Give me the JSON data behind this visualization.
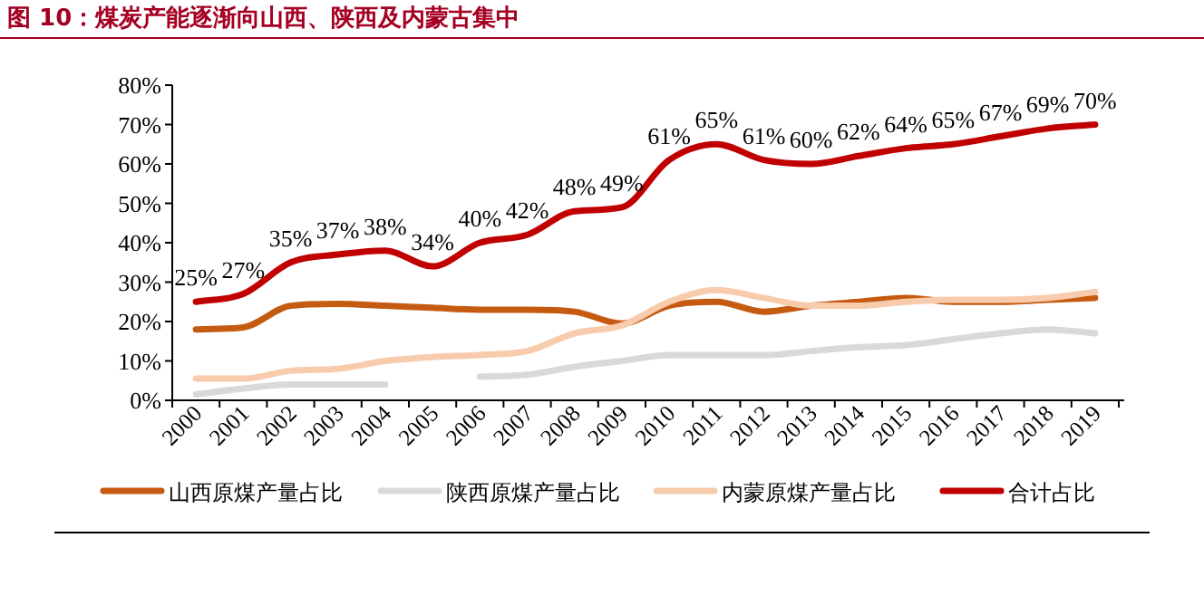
{
  "chart_data": {
    "type": "line",
    "title": "图 10：煤炭产能逐渐向山西、陕西及内蒙古集中",
    "categories": [
      "2000",
      "2001",
      "2002",
      "2003",
      "2004",
      "2005",
      "2006",
      "2007",
      "2008",
      "2009",
      "2010",
      "2011",
      "2012",
      "2013",
      "2014",
      "2015",
      "2016",
      "2017",
      "2018",
      "2019"
    ],
    "series": [
      {
        "name": "山西原煤产量占比",
        "color": "#c55a11",
        "values": [
          18,
          18.5,
          24,
          24.5,
          24,
          23.5,
          23,
          23,
          22.5,
          19.5,
          24,
          25,
          22.5,
          24,
          25,
          26,
          25,
          25,
          25.5,
          26
        ]
      },
      {
        "name": "陕西原煤产量占比",
        "color": "#d9d9d9",
        "values": [
          1.5,
          3,
          4,
          4,
          4,
          null,
          6,
          6.5,
          8.5,
          10,
          11.5,
          11.5,
          11.5,
          12.5,
          13.5,
          14,
          15.5,
          17,
          18,
          17
        ]
      },
      {
        "name": "内蒙原煤产量占比",
        "color": "#f8cbad",
        "values": [
          5.5,
          5.5,
          7.5,
          8,
          10,
          11,
          11.5,
          12.5,
          17,
          19,
          25,
          28,
          26,
          24,
          24,
          25,
          25.5,
          25.5,
          26,
          27.5
        ]
      },
      {
        "name": "合计占比",
        "color": "#c00000",
        "values": [
          25,
          27,
          35,
          37,
          38,
          34,
          40,
          42,
          48,
          49,
          61,
          65,
          61,
          60,
          62,
          64,
          65,
          67,
          69,
          70
        ],
        "value_labels": [
          "25%",
          "27%",
          "35%",
          "37%",
          "38%",
          "34%",
          "40%",
          "42%",
          "48%",
          "49%",
          "61%",
          "65%",
          "61%",
          "60%",
          "62%",
          "64%",
          "65%",
          "67%",
          "69%",
          "70%"
        ]
      }
    ],
    "ylim": [
      0,
      80
    ],
    "yticks": [
      {
        "value": 0,
        "label": "0%"
      },
      {
        "value": 10,
        "label": "10%"
      },
      {
        "value": 20,
        "label": "20%"
      },
      {
        "value": 30,
        "label": "30%"
      },
      {
        "value": 40,
        "label": "40%"
      },
      {
        "value": 50,
        "label": "50%"
      },
      {
        "value": 60,
        "label": "60%"
      },
      {
        "value": 70,
        "label": "70%"
      },
      {
        "value": 80,
        "label": "80%"
      }
    ],
    "grid": false,
    "legend": "bottom"
  }
}
